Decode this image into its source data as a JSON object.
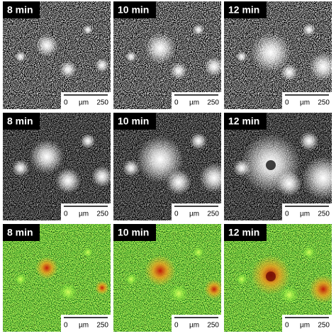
{
  "rows": [
    {
      "panels": [
        {
          "time": "8 min",
          "scale_start": "0",
          "scale_unit": "µm",
          "scale_end": "250"
        },
        {
          "time": "10 min",
          "scale_start": "0",
          "scale_unit": "µm",
          "scale_end": "250"
        },
        {
          "time": "12 min",
          "scale_start": "0",
          "scale_unit": "µm",
          "scale_end": "250"
        }
      ]
    },
    {
      "panels": [
        {
          "time": "8 min",
          "scale_start": "0",
          "scale_unit": "µm",
          "scale_end": "250"
        },
        {
          "time": "10 min",
          "scale_start": "0",
          "scale_unit": "µm",
          "scale_end": "250"
        },
        {
          "time": "12 min",
          "scale_start": "0",
          "scale_unit": "µm",
          "scale_end": "250"
        }
      ]
    },
    {
      "panels": [
        {
          "time": "8 min",
          "scale_start": "0",
          "scale_unit": "µm",
          "scale_end": "250"
        },
        {
          "time": "10 min",
          "scale_start": "0",
          "scale_unit": "µm",
          "scale_end": "250"
        },
        {
          "time": "12 min",
          "scale_start": "0",
          "scale_unit": "µm",
          "scale_end": "250"
        }
      ]
    }
  ]
}
